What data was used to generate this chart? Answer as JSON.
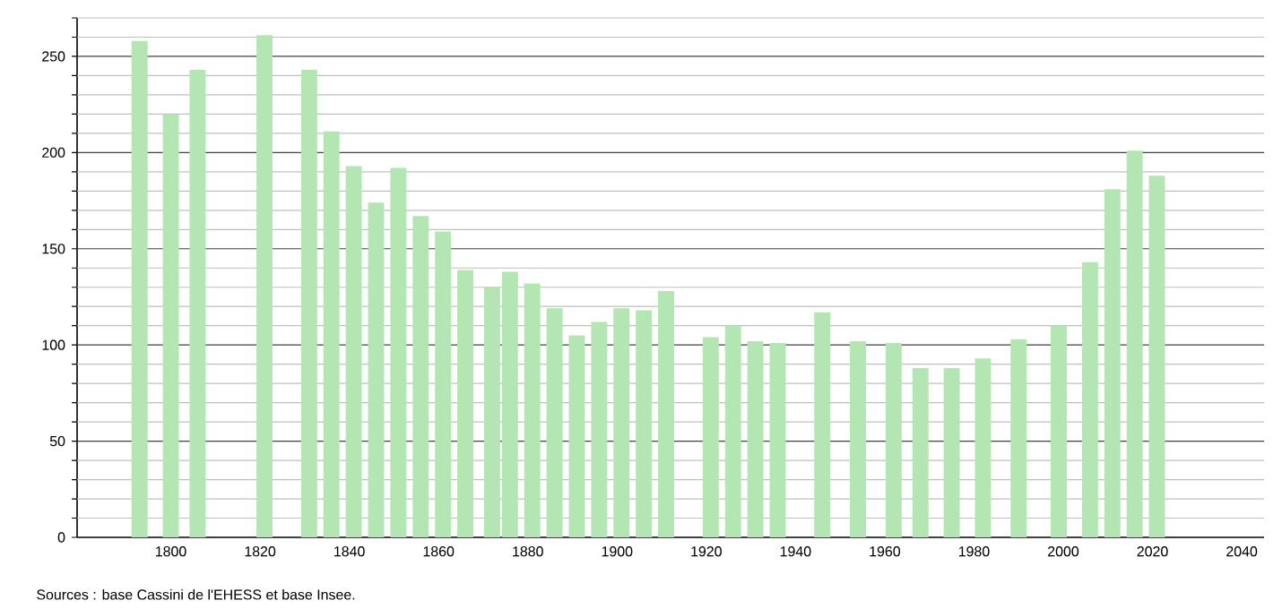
{
  "chart_data": {
    "type": "bar",
    "x": [
      1793,
      1800,
      1806,
      1821,
      1831,
      1836,
      1841,
      1846,
      1851,
      1856,
      1861,
      1866,
      1872,
      1876,
      1881,
      1886,
      1891,
      1896,
      1901,
      1906,
      1911,
      1921,
      1926,
      1931,
      1936,
      1946,
      1954,
      1962,
      1968,
      1975,
      1982,
      1990,
      1999,
      2006,
      2011,
      2016,
      2021
    ],
    "values": [
      258,
      220,
      243,
      261,
      243,
      211,
      193,
      174,
      192,
      167,
      159,
      139,
      130,
      138,
      132,
      119,
      105,
      112,
      119,
      118,
      128,
      104,
      110,
      102,
      101,
      117,
      102,
      101,
      88,
      88,
      93,
      103,
      110,
      143,
      181,
      201,
      188
    ],
    "color": "#b3e6b3",
    "xlim": [
      1779,
      2045
    ],
    "xticks": [
      1800,
      1820,
      1840,
      1860,
      1880,
      1900,
      1920,
      1940,
      1960,
      1980,
      2000,
      2020,
      2040
    ],
    "ylim": [
      0,
      270
    ],
    "yticks": [
      0,
      {
        "value": 10,
        "label": null
      },
      {
        "value": 20,
        "label": null
      },
      {
        "value": 30,
        "label": null
      },
      {
        "value": 40,
        "label": null
      },
      50,
      {
        "value": 60,
        "label": null
      },
      {
        "value": 70,
        "label": null
      },
      {
        "value": 80,
        "label": null
      },
      {
        "value": 90,
        "label": null
      },
      100,
      {
        "value": 110,
        "label": null
      },
      {
        "value": 120,
        "label": null
      },
      {
        "value": 130,
        "label": null
      },
      {
        "value": 140,
        "label": null
      },
      150,
      {
        "value": 160,
        "label": null
      },
      {
        "value": 170,
        "label": null
      },
      {
        "value": 180,
        "label": null
      },
      {
        "value": 190,
        "label": null
      },
      200,
      {
        "value": 210,
        "label": null
      },
      {
        "value": 220,
        "label": null
      },
      {
        "value": 230,
        "label": null
      },
      {
        "value": 240,
        "label": null
      },
      250,
      {
        "value": 260,
        "label": null
      },
      {
        "value": 270,
        "label": null
      }
    ],
    "grid": "y",
    "annotations": [
      "Sources : base Cassini de l'EHESS et base Insee."
    ]
  }
}
